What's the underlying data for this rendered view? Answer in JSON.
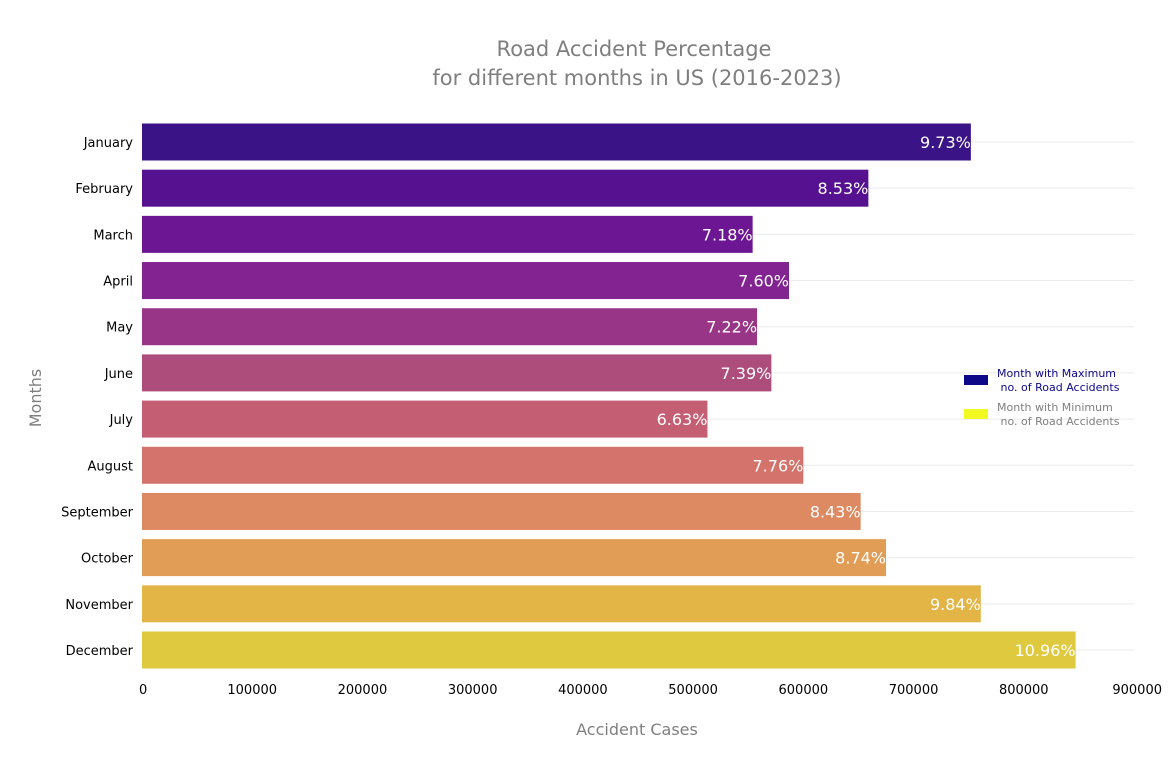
{
  "chart_data": {
    "type": "bar",
    "orientation": "horizontal",
    "title_line1": "Road Accident Percentage",
    "title_line2": "for different months in US (2016-2023)",
    "xlabel": "Accident Cases",
    "ylabel": "Months",
    "xlim": [
      0,
      900000
    ],
    "x_ticks": [
      0,
      100000,
      200000,
      300000,
      400000,
      500000,
      600000,
      700000,
      800000,
      900000
    ],
    "x_tick_labels": [
      "0",
      "100000",
      "200000",
      "300000",
      "400000",
      "500000",
      "600000",
      "700000",
      "800000",
      "900000"
    ],
    "grid": "horizontal",
    "legend_placement": "center-right",
    "categories": [
      "January",
      "February",
      "March",
      "April",
      "May",
      "June",
      "July",
      "August",
      "September",
      "October",
      "November",
      "December"
    ],
    "values": [
      752000,
      659000,
      554000,
      587000,
      558000,
      571000,
      513000,
      600000,
      652000,
      675000,
      761000,
      847000
    ],
    "percent_labels": [
      "9.73%",
      "8.53%",
      "7.18%",
      "7.60%",
      "7.22%",
      "7.39%",
      "6.63%",
      "7.76%",
      "8.43%",
      "8.74%",
      "9.84%",
      "10.96%"
    ],
    "bar_colors": [
      "#3a1486",
      "#55118f",
      "#6d1694",
      "#832391",
      "#983587",
      "#ad4d7c",
      "#c45f73",
      "#d3736b",
      "#dd8a62",
      "#e19d55",
      "#e3b446",
      "#dfca3f"
    ],
    "legend": [
      {
        "line1": "Month with Maximum",
        "line2": " no. of Road Accidents",
        "swatch_color": "#0d0887",
        "text_color": "#0d0887"
      },
      {
        "line1": "Month with Minimum",
        "line2": " no. of Road Accidents",
        "swatch_color": "#f0f921",
        "text_color": "#7f7f7f"
      }
    ],
    "colors": {
      "title": "#7f7f7f",
      "axis_label": "#7f7f7f",
      "tick_label": "#000000",
      "grid": "#ebebeb",
      "bar_label": "#ffffff"
    }
  }
}
